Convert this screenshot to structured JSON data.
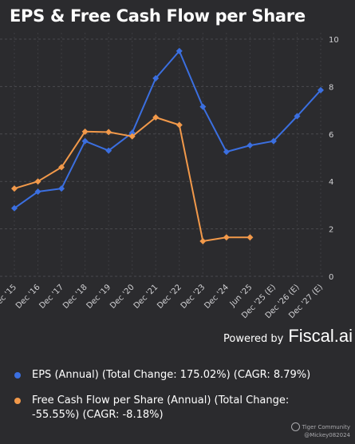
{
  "title": "EPS & Free Cash Flow per Share",
  "powered_by": "Powered by",
  "brand": "Fiscal.ai",
  "watermark": {
    "community": "Tiger Community",
    "user": "@Mickey082024"
  },
  "colors": {
    "eps": "#3b6fe0",
    "fcf": "#f2994a",
    "background": "#2b2b2e",
    "grid": "#4a4a4e"
  },
  "chart_data": {
    "type": "line",
    "categories": [
      "Dec '15",
      "Dec '16",
      "Dec '17",
      "Dec '18",
      "Dec '19",
      "Dec '20",
      "Dec '21",
      "Dec '22",
      "Dec '23",
      "Dec '24",
      "Jun '25",
      "Dec '25 (E)",
      "Dec '26 (E)",
      "Dec '27 (E)"
    ],
    "tick_labels": [
      "Dec '15",
      "Dec '16",
      "Dec '17",
      "Dec '18",
      "Dec '19",
      "Dec '20",
      "Dec '21",
      "Dec '22",
      "Dec '23",
      "Dec '24",
      "Jun '25",
      "Dec '25 (E)",
      "Dec '26 (E)",
      "Dec '27 (E)"
    ],
    "y_ticks": [
      0,
      2,
      4,
      6,
      8,
      10
    ],
    "ylim": [
      0,
      10
    ],
    "y_axis_side": "right",
    "grid": true,
    "series": [
      {
        "name": "EPS (Annual) (Total Change: 175.02%) (CAGR: 8.79%)",
        "color": "#3b6fe0",
        "values": [
          2.87,
          3.57,
          3.7,
          5.7,
          5.3,
          6.05,
          8.35,
          9.5,
          7.15,
          5.25,
          5.52,
          5.7,
          6.75,
          7.85
        ]
      },
      {
        "name": "Free Cash Flow per Share (Annual) (Total Change: -55.55%) (CAGR: -8.18%)",
        "color": "#f2994a",
        "values": [
          3.7,
          4.0,
          4.6,
          6.1,
          6.08,
          5.9,
          6.7,
          6.38,
          1.48,
          1.64,
          1.64,
          null,
          null,
          null
        ]
      }
    ]
  }
}
